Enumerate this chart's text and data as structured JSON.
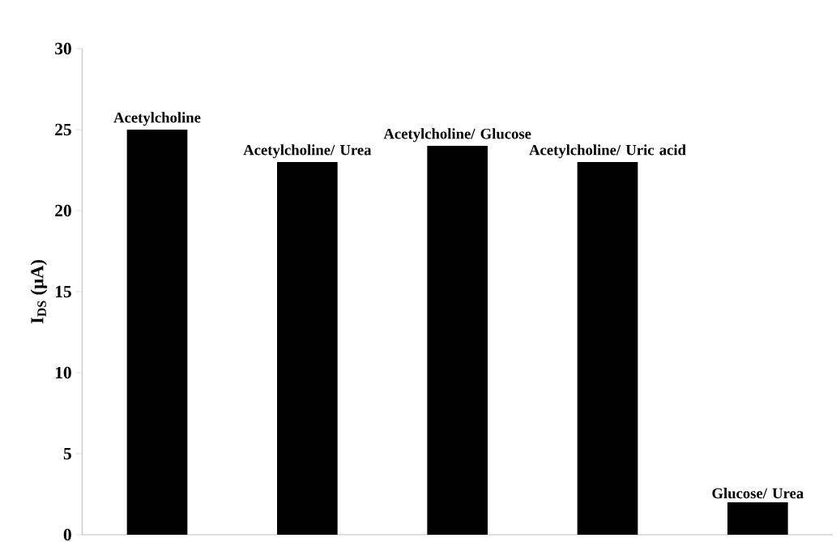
{
  "chart_data": {
    "type": "bar",
    "ylabel": "I$_{DS}$ (µA)",
    "categories": [
      "Acetylcholine",
      "Acetylcholine/ Urea",
      "Acetylcholine/ Glucose",
      "Acetylcholine/ Uric acid",
      "Glucose/ Urea"
    ],
    "values": [
      25,
      23,
      24,
      23,
      2
    ],
    "color": "#000000",
    "ylim": [
      0,
      30
    ],
    "yticks": [
      0,
      5,
      10,
      15,
      20,
      25,
      30
    ],
    "grid": false,
    "tick_labels": "y"
  }
}
